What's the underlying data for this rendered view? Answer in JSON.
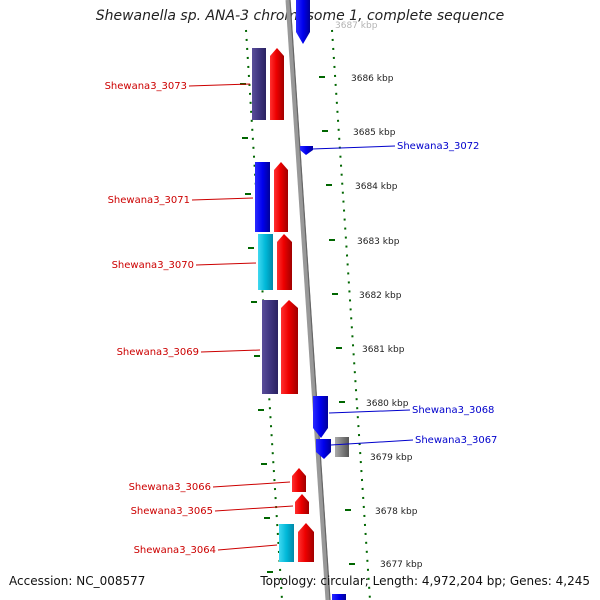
{
  "title": "Shewanella sp. ANA-3 chromosome 1, complete sequence",
  "footer": {
    "accession": "Accession: NC_008577",
    "summary": "Topology: circular; Length: 4,972,204 bp; Genes: 4,245"
  },
  "colors": {
    "backbone": "#999999",
    "left_label": "#cc0000",
    "right_label": "#0000cc",
    "tick_marks": "#006600"
  },
  "scale": {
    "unit": "kbp",
    "ticks": [
      "3687 kbp",
      "3686 kbp",
      "3685 kbp",
      "3684 kbp",
      "3683 kbp",
      "3682 kbp",
      "3681 kbp",
      "3680 kbp",
      "3679 kbp",
      "3678 kbp",
      "3677 kbp"
    ]
  },
  "genes_left": [
    {
      "name": "Shewana3_3073"
    },
    {
      "name": "Shewana3_3071"
    },
    {
      "name": "Shewana3_3070"
    },
    {
      "name": "Shewana3_3069"
    },
    {
      "name": "Shewana3_3066"
    },
    {
      "name": "Shewana3_3065"
    },
    {
      "name": "Shewana3_3064"
    }
  ],
  "genes_right": [
    {
      "name": "Shewana3_3072"
    },
    {
      "name": "Shewana3_3068"
    },
    {
      "name": "Shewana3_3067"
    }
  ]
}
